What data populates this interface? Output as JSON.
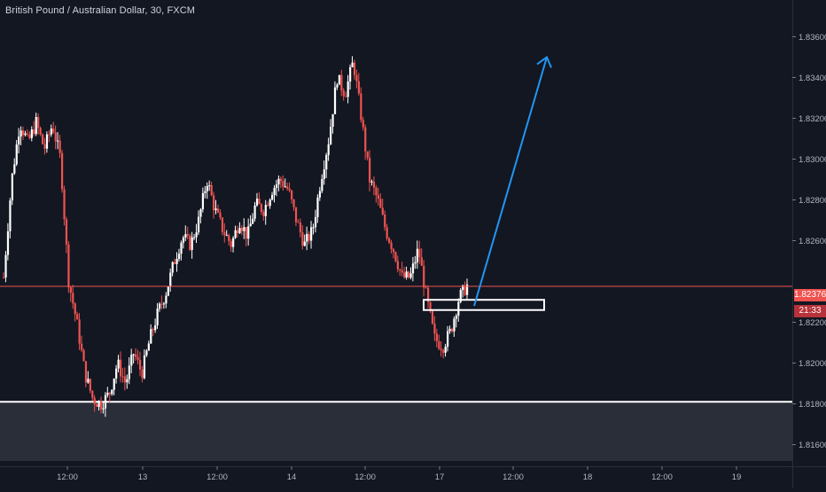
{
  "header": {
    "symbol_title": "British Pound / Australian Dollar, 30, FXCM"
  },
  "price_label": {
    "price": "1.82376",
    "countdown": "21:33"
  },
  "colors": {
    "background": "#131722",
    "up_candle": "#ffffff",
    "down_candle": "#ef5350",
    "arrow": "#2196f3",
    "price_line": "#ef5350",
    "support_zone": "#2a2e39",
    "axis_text": "#b2b5be"
  },
  "chart_data": {
    "type": "candlestick",
    "title": "British Pound / Australian Dollar, 30, FXCM",
    "y_axis": {
      "side": "right",
      "ylim": [
        1.8152,
        1.8378
      ],
      "ticks": [
        "1.81600",
        "1.81800",
        "1.82000",
        "1.82200",
        "1.82600",
        "1.82800",
        "1.83000",
        "1.83200",
        "1.83400",
        "1.83600"
      ]
    },
    "x_axis": {
      "ticks": [
        "12:00",
        "13",
        "12:00",
        "14",
        "12:00",
        "17",
        "12:00",
        "18",
        "12:00",
        "19"
      ]
    },
    "current_price": 1.82376,
    "support_level": 1.8181,
    "demand_box": {
      "price_top": 1.8231,
      "price_bottom": 1.8226
    },
    "projection_arrow": {
      "from_price": 1.8228,
      "to_price": 1.835
    },
    "candle_path": [
      1.8242,
      1.829,
      1.8318,
      1.8308,
      1.8318,
      1.8305,
      1.8317,
      1.83,
      1.824,
      1.822,
      1.8195,
      1.8182,
      1.818,
      1.8185,
      1.82,
      1.819,
      1.8205,
      1.8195,
      1.8212,
      1.8225,
      1.8235,
      1.825,
      1.8262,
      1.8258,
      1.827,
      1.829,
      1.8275,
      1.8265,
      1.8258,
      1.827,
      1.8262,
      1.8278,
      1.8275,
      1.8285,
      1.829,
      1.8285,
      1.827,
      1.8258,
      1.8265,
      1.829,
      1.831,
      1.834,
      1.8332,
      1.8348,
      1.832,
      1.829,
      1.828,
      1.8265,
      1.8255,
      1.8242,
      1.8242,
      1.8256,
      1.8232,
      1.8212,
      1.8208,
      1.8216,
      1.8232,
      1.8238
    ]
  }
}
